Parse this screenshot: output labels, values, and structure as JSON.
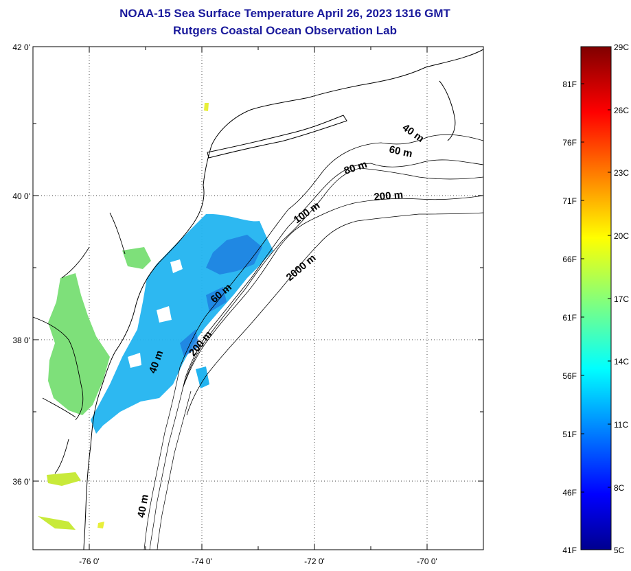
{
  "title": {
    "line1": "NOAA-15 Sea Surface Temperature April 26, 2023 1316 GMT",
    "line2": "Rutgers Coastal Ocean Observation Lab"
  },
  "map": {
    "lat_ticks": [
      "42 0'",
      "40 0'",
      "38 0'",
      "36 0'"
    ],
    "lon_ticks": [
      "-76 0'",
      "-74 0'",
      "-72 0'",
      "-70 0'"
    ],
    "contour_labels": [
      "40 m",
      "60 m",
      "80 m",
      "200 m",
      "100 m",
      "2000 m",
      "60 m",
      "200 m",
      "40 m",
      "40 m"
    ]
  },
  "colorbar": {
    "fahrenheit": [
      "81F",
      "76F",
      "71F",
      "66F",
      "61F",
      "56F",
      "51F",
      "46F",
      "41F"
    ],
    "celsius": [
      "29C",
      "26C",
      "23C",
      "20C",
      "17C",
      "14C",
      "11C",
      "8C",
      "5C"
    ]
  },
  "colors": {
    "title": "#1a1a9c",
    "sst_cold_water": "#22b4f0",
    "sst_estuary": "#7ee07a"
  }
}
